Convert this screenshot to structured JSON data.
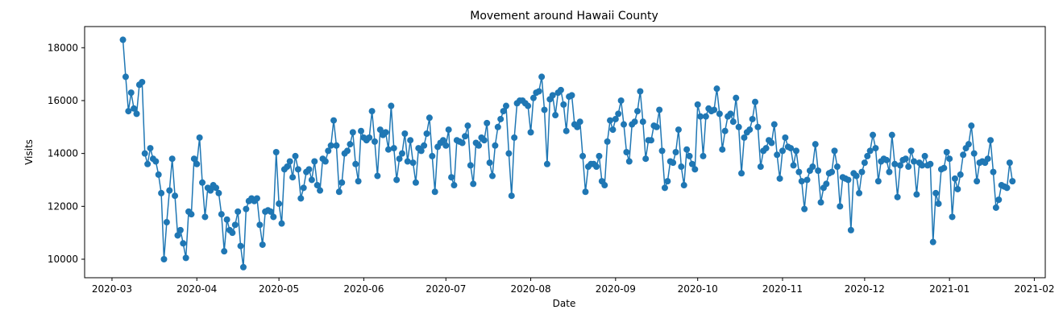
{
  "chart_data": {
    "type": "line",
    "title": "Movement around Hawaii County",
    "xlabel": "Date",
    "ylabel": "Visits",
    "x_start": "2020-03-05",
    "x_end": "2021-01-22",
    "xlim": [
      "2020-02-20",
      "2021-02-05"
    ],
    "ylim": [
      9300,
      18800
    ],
    "x_ticks": [
      {
        "date": "2020-03-01",
        "label": "2020-03"
      },
      {
        "date": "2020-04-01",
        "label": "2020-04"
      },
      {
        "date": "2020-05-01",
        "label": "2020-05"
      },
      {
        "date": "2020-06-01",
        "label": "2020-06"
      },
      {
        "date": "2020-07-01",
        "label": "2020-07"
      },
      {
        "date": "2020-08-01",
        "label": "2020-08"
      },
      {
        "date": "2020-09-01",
        "label": "2020-09"
      },
      {
        "date": "2020-10-01",
        "label": "2020-10"
      },
      {
        "date": "2020-11-01",
        "label": "2020-11"
      },
      {
        "date": "2020-12-01",
        "label": "2020-12"
      },
      {
        "date": "2021-01-01",
        "label": "2021-01"
      },
      {
        "date": "2021-02-01",
        "label": "2021-02"
      }
    ],
    "y_ticks": [
      {
        "value": 10000,
        "label": "10000"
      },
      {
        "value": 12000,
        "label": "12000"
      },
      {
        "value": 14000,
        "label": "14000"
      },
      {
        "value": 16000,
        "label": "16000"
      },
      {
        "value": 18000,
        "label": "18000"
      }
    ],
    "grid": false,
    "series_color": "#1f77b4",
    "values": [
      18300,
      16900,
      15600,
      16300,
      15700,
      15500,
      16600,
      16700,
      14000,
      13600,
      14200,
      13800,
      13700,
      13200,
      12500,
      10000,
      11400,
      12600,
      13800,
      12400,
      10900,
      11100,
      10600,
      10050,
      11800,
      11700,
      13800,
      13600,
      14600,
      12900,
      11600,
      12700,
      12600,
      12800,
      12700,
      12500,
      11700,
      10300,
      11500,
      11100,
      11000,
      11300,
      11800,
      10500,
      9700,
      11900,
      12200,
      12300,
      12200,
      12300,
      11300,
      10550,
      11800,
      11850,
      11800,
      11600,
      14050,
      12100,
      11350,
      13400,
      13500,
      13700,
      13100,
      13900,
      13400,
      12300,
      12700,
      13300,
      13400,
      13000,
      13700,
      12800,
      12600,
      13800,
      13700,
      14100,
      14300,
      15250,
      14300,
      12550,
      12900,
      14000,
      14100,
      14350,
      14800,
      13600,
      12950,
      14850,
      14600,
      14500,
      14600,
      15600,
      14450,
      13150,
      14900,
      14700,
      14800,
      14150,
      15800,
      14200,
      13000,
      13800,
      14000,
      14750,
      13700,
      14500,
      13650,
      12900,
      14200,
      14100,
      14300,
      14750,
      15350,
      13900,
      12550,
      14250,
      14400,
      14500,
      14300,
      14900,
      13100,
      12800,
      14500,
      14450,
      14400,
      14650,
      15050,
      13550,
      12850,
      14400,
      14300,
      14600,
      14500,
      15150,
      13650,
      13150,
      14300,
      15000,
      15300,
      15600,
      15800,
      14000,
      12400,
      14600,
      15900,
      16000,
      16000,
      15900,
      15800,
      14800,
      16100,
      16300,
      16350,
      16900,
      15650,
      13600,
      16050,
      16200,
      15450,
      16300,
      16400,
      15850,
      14850,
      16150,
      16200,
      15100,
      15000,
      15200,
      13900,
      12550,
      13500,
      13600,
      13600,
      13500,
      13900,
      12950,
      12800,
      14450,
      15250,
      14900,
      15300,
      15500,
      16000,
      15100,
      14050,
      13700,
      15100,
      15200,
      15600,
      16350,
      15200,
      13800,
      14500,
      14500,
      15050,
      15000,
      15650,
      14100,
      12700,
      12950,
      13700,
      13650,
      14050,
      14900,
      13500,
      12800,
      14150,
      13900,
      13600,
      13400,
      15850,
      15400,
      13900,
      15400,
      15700,
      15600,
      15650,
      16450,
      15500,
      14150,
      14850,
      15400,
      15500,
      15200,
      16100,
      15000,
      13250,
      14600,
      14800,
      14900,
      15300,
      15950,
      15000,
      13500,
      14100,
      14200,
      14500,
      14400,
      15100,
      13950,
      13050,
      14100,
      14600,
      14250,
      14200,
      13550,
      14100,
      13300,
      12950,
      11900,
      13000,
      13350,
      13500,
      14350,
      13350,
      12150,
      12700,
      12850,
      13250,
      13300,
      14100,
      13500,
      12000,
      13100,
      13050,
      13000,
      11100,
      13250,
      13150,
      12500,
      13300,
      13650,
      13900,
      14100,
      14700,
      14200,
      12950,
      13700,
      13800,
      13750,
      13300,
      14700,
      13600,
      12350,
      13550,
      13750,
      13800,
      13500,
      14100,
      13700,
      12450,
      13650,
      13550,
      13900,
      13550,
      13600,
      10650,
      12500,
      12100,
      13400,
      13450,
      14050,
      13800,
      11600,
      13050,
      12650,
      13200,
      13950,
      14200,
      14350,
      15050,
      14000,
      12950,
      13650,
      13700,
      13650,
      13800,
      14500,
      13300,
      11950,
      12250,
      12800,
      12750,
      12700,
      13650,
      12950
    ]
  }
}
